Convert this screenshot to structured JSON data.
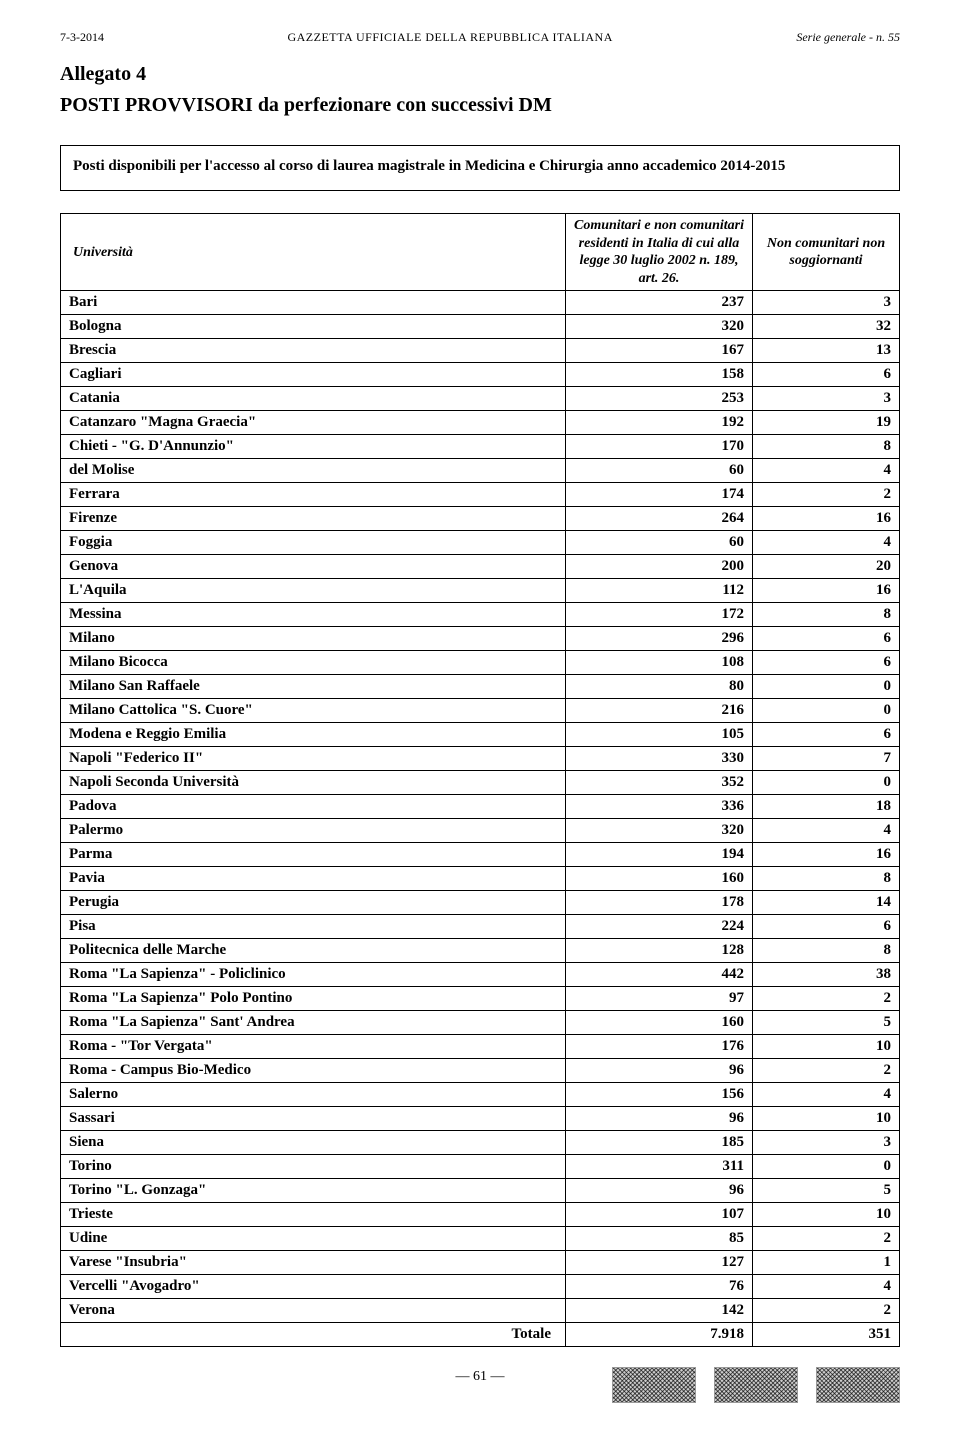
{
  "header": {
    "left": "7-3-2014",
    "center": "GAZZETTA UFFICIALE DELLA REPUBBLICA ITALIANA",
    "right": "Serie generale - n. 55"
  },
  "allegato": "Allegato 4",
  "subtitle": "POSTI PROVVISORI da perfezionare con successivi DM",
  "intro": "Posti disponibili per l'accesso al corso di laurea magistrale in Medicina e Chirurgia anno accademico 2014-2015",
  "columns": {
    "c0": "Università",
    "c1": "Comunitari e non comunitari residenti in Italia di cui alla legge 30 luglio 2002 n. 189, art. 26.",
    "c2": "Non comunitari non soggiornanti"
  },
  "rows": [
    {
      "name": "Bari",
      "v1": "237",
      "v2": "3"
    },
    {
      "name": "Bologna",
      "v1": "320",
      "v2": "32"
    },
    {
      "name": "Brescia",
      "v1": "167",
      "v2": "13"
    },
    {
      "name": "Cagliari",
      "v1": "158",
      "v2": "6"
    },
    {
      "name": "Catania",
      "v1": "253",
      "v2": "3"
    },
    {
      "name": "Catanzaro \"Magna Graecia\"",
      "v1": "192",
      "v2": "19"
    },
    {
      "name": "Chieti - \"G. D'Annunzio\"",
      "v1": "170",
      "v2": "8"
    },
    {
      "name": "del Molise",
      "v1": "60",
      "v2": "4"
    },
    {
      "name": "Ferrara",
      "v1": "174",
      "v2": "2"
    },
    {
      "name": "Firenze",
      "v1": "264",
      "v2": "16"
    },
    {
      "name": "Foggia",
      "v1": "60",
      "v2": "4"
    },
    {
      "name": "Genova",
      "v1": "200",
      "v2": "20"
    },
    {
      "name": "L'Aquila",
      "v1": "112",
      "v2": "16"
    },
    {
      "name": "Messina",
      "v1": "172",
      "v2": "8"
    },
    {
      "name": "Milano",
      "v1": "296",
      "v2": "6"
    },
    {
      "name": "Milano Bicocca",
      "v1": "108",
      "v2": "6"
    },
    {
      "name": "Milano San Raffaele",
      "v1": "80",
      "v2": "0"
    },
    {
      "name": "Milano Cattolica \"S. Cuore\"",
      "v1": "216",
      "v2": "0"
    },
    {
      "name": "Modena e Reggio Emilia",
      "v1": "105",
      "v2": "6"
    },
    {
      "name": "Napoli \"Federico II\"",
      "v1": "330",
      "v2": "7"
    },
    {
      "name": "Napoli Seconda Università",
      "v1": "352",
      "v2": "0"
    },
    {
      "name": "Padova",
      "v1": "336",
      "v2": "18"
    },
    {
      "name": "Palermo",
      "v1": "320",
      "v2": "4"
    },
    {
      "name": "Parma",
      "v1": "194",
      "v2": "16"
    },
    {
      "name": "Pavia",
      "v1": "160",
      "v2": "8"
    },
    {
      "name": "Perugia",
      "v1": "178",
      "v2": "14"
    },
    {
      "name": "Pisa",
      "v1": "224",
      "v2": "6"
    },
    {
      "name": "Politecnica delle Marche",
      "v1": "128",
      "v2": "8"
    },
    {
      "name": "Roma  \"La Sapienza\" - Policlinico",
      "v1": "442",
      "v2": "38"
    },
    {
      "name": "Roma  \"La Sapienza\" Polo Pontino",
      "v1": "97",
      "v2": "2"
    },
    {
      "name": "Roma \"La Sapienza\"  Sant' Andrea",
      "v1": "160",
      "v2": "5"
    },
    {
      "name": "Roma - \"Tor Vergata\"",
      "v1": "176",
      "v2": "10"
    },
    {
      "name": "Roma - Campus Bio-Medico",
      "v1": "96",
      "v2": "2"
    },
    {
      "name": "Salerno",
      "v1": "156",
      "v2": "4"
    },
    {
      "name": "Sassari",
      "v1": "96",
      "v2": "10"
    },
    {
      "name": "Siena",
      "v1": "185",
      "v2": "3"
    },
    {
      "name": "Torino",
      "v1": "311",
      "v2": "0"
    },
    {
      "name": "Torino \"L. Gonzaga\"",
      "v1": "96",
      "v2": "5"
    },
    {
      "name": "Trieste",
      "v1": "107",
      "v2": "10"
    },
    {
      "name": "Udine",
      "v1": "85",
      "v2": "2"
    },
    {
      "name": "Varese \"Insubria\"",
      "v1": "127",
      "v2": "1"
    },
    {
      "name": "Vercelli \"Avogadro\"",
      "v1": "76",
      "v2": "4"
    },
    {
      "name": "Verona",
      "v1": "142",
      "v2": "2"
    }
  ],
  "total": {
    "label": "Totale",
    "v1": "7.918",
    "v2": "351"
  },
  "footer": "— 61 —"
}
